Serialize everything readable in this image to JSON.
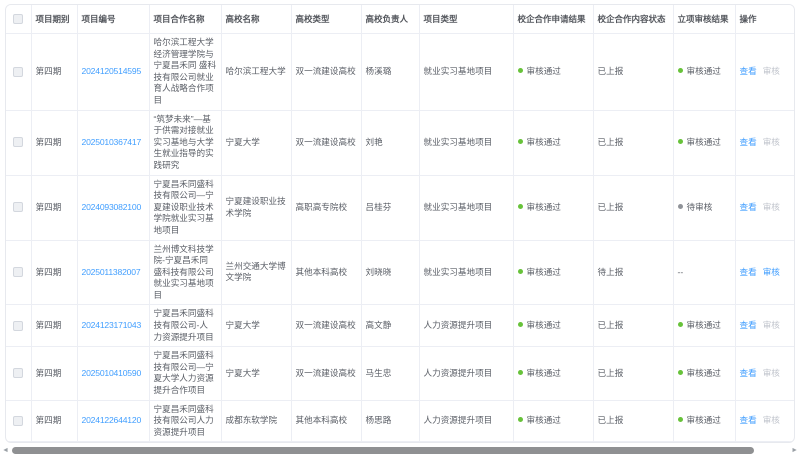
{
  "colors": {
    "green": "#67c23a",
    "grey": "#909399",
    "link": "#409eff",
    "disabled": "#c0c4cc"
  },
  "scrollbar": {
    "left_arrow": "◄",
    "right_arrow": "►"
  },
  "table": {
    "columns": [
      {
        "key": "period",
        "label": "项目期别"
      },
      {
        "key": "number",
        "label": "项目编号"
      },
      {
        "key": "name",
        "label": "项目合作名称"
      },
      {
        "key": "university",
        "label": "高校名称"
      },
      {
        "key": "univType",
        "label": "高校类型"
      },
      {
        "key": "leader",
        "label": "高校负责人"
      },
      {
        "key": "projectType",
        "label": "项目类型"
      },
      {
        "key": "applyResult",
        "label": "校企合作申请结果"
      },
      {
        "key": "contentStatus",
        "label": "校企合作内容状态"
      },
      {
        "key": "approvalResult",
        "label": "立项审核结果"
      },
      {
        "key": "actions",
        "label": "操作"
      }
    ],
    "rows": [
      {
        "period": "第四期",
        "number": "2024120514595",
        "name": "哈尔滨工程大学经济管理学院与宁夏昌禾同 盛科技有限公司就业育人战略合作项目",
        "university": "哈尔滨工程大学",
        "univType": "双一流建设高校",
        "leader": "杨溪璐",
        "projectType": "就业实习基地项目",
        "applyResult": {
          "text": "审核通过",
          "dot": "green"
        },
        "contentStatus": "已上报",
        "approvalResult": {
          "text": "审核通过",
          "dot": "green"
        },
        "actions": [
          {
            "name": "view",
            "label": "查看",
            "enabled": true
          },
          {
            "name": "audit",
            "label": "审核",
            "enabled": false
          }
        ]
      },
      {
        "period": "第四期",
        "number": "2025010367417",
        "name": "“筑梦未来”—基于供需对接就业实习基地与大学生就业指导的实践研究",
        "university": "宁夏大学",
        "univType": "双一流建设高校",
        "leader": "刘艳",
        "projectType": "就业实习基地项目",
        "applyResult": {
          "text": "审核通过",
          "dot": "green"
        },
        "contentStatus": "已上报",
        "approvalResult": {
          "text": "审核通过",
          "dot": "green"
        },
        "actions": [
          {
            "name": "view",
            "label": "查看",
            "enabled": true
          },
          {
            "name": "audit",
            "label": "审核",
            "enabled": false
          }
        ]
      },
      {
        "period": "第四期",
        "number": "2024093082100",
        "name": "宁夏昌禾同盛科技有限公司—宁夏建设职业技术学院就业实习基地项目",
        "university": "宁夏建设职业技术学院",
        "univType": "高职高专院校",
        "leader": "吕桂芬",
        "projectType": "就业实习基地项目",
        "applyResult": {
          "text": "审核通过",
          "dot": "green"
        },
        "contentStatus": "已上报",
        "approvalResult": {
          "text": "待审核",
          "dot": "grey"
        },
        "actions": [
          {
            "name": "view",
            "label": "查看",
            "enabled": true
          },
          {
            "name": "audit",
            "label": "审核",
            "enabled": false
          }
        ]
      },
      {
        "period": "第四期",
        "number": "2025011382007",
        "name": "兰州博文科技学院-宁夏昌禾同盛科技有限公司就业实习基地项目",
        "university": "兰州交通大学博文学院",
        "univType": "其他本科高校",
        "leader": "刘晓晓",
        "projectType": "就业实习基地项目",
        "applyResult": {
          "text": "审核通过",
          "dot": "green"
        },
        "contentStatus": "待上报",
        "approvalResult": "--",
        "actions": [
          {
            "name": "view",
            "label": "查看",
            "enabled": true
          },
          {
            "name": "audit",
            "label": "审核",
            "enabled": true
          }
        ]
      },
      {
        "period": "第四期",
        "number": "2024123171043",
        "name": "宁夏昌禾同盛科技有限公司-人力资源提升项目",
        "university": "宁夏大学",
        "univType": "双一流建设高校",
        "leader": "高文静",
        "projectType": "人力资源提升项目",
        "applyResult": {
          "text": "审核通过",
          "dot": "green"
        },
        "contentStatus": "已上报",
        "approvalResult": {
          "text": "审核通过",
          "dot": "green"
        },
        "actions": [
          {
            "name": "view",
            "label": "查看",
            "enabled": true
          },
          {
            "name": "audit",
            "label": "审核",
            "enabled": false
          }
        ]
      },
      {
        "period": "第四期",
        "number": "2025010410590",
        "name": "宁夏昌禾同盛科技有限公司—宁夏大学人力资源提升合作项目",
        "university": "宁夏大学",
        "univType": "双一流建设高校",
        "leader": "马生忠",
        "projectType": "人力资源提升项目",
        "applyResult": {
          "text": "审核通过",
          "dot": "green"
        },
        "contentStatus": "已上报",
        "approvalResult": {
          "text": "审核通过",
          "dot": "green"
        },
        "actions": [
          {
            "name": "view",
            "label": "查看",
            "enabled": true
          },
          {
            "name": "audit",
            "label": "审核",
            "enabled": false
          }
        ]
      },
      {
        "period": "第四期",
        "number": "2024122644120",
        "name": "宁夏昌禾同盛科技有限公司人力资源提升项目",
        "university": "成都东软学院",
        "univType": "其他本科高校",
        "leader": "杨思路",
        "projectType": "人力资源提升项目",
        "applyResult": {
          "text": "审核通过",
          "dot": "green"
        },
        "contentStatus": "已上报",
        "approvalResult": {
          "text": "审核通过",
          "dot": "green"
        },
        "actions": [
          {
            "name": "view",
            "label": "查看",
            "enabled": true
          },
          {
            "name": "audit",
            "label": "审核",
            "enabled": false
          }
        ]
      }
    ]
  }
}
